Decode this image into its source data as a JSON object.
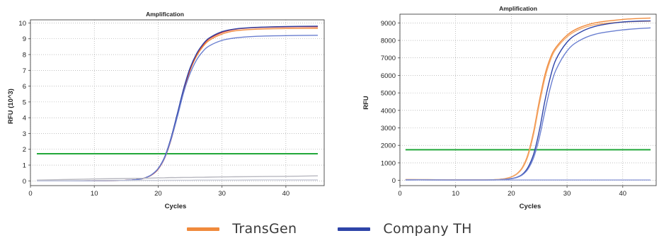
{
  "legend": {
    "items": [
      {
        "label": "TransGen",
        "color": "#f08a3c"
      },
      {
        "label": "Company TH",
        "color": "#2e44a8"
      }
    ]
  },
  "chart_data": [
    {
      "type": "line",
      "title": "Amplification",
      "xlabel": "Cycles",
      "ylabel": "RFU (10^3)",
      "xlim": [
        0,
        46
      ],
      "ylim": [
        -0.3,
        10.2
      ],
      "xticks": [
        0,
        10,
        20,
        30,
        40
      ],
      "yticks": [
        0,
        1,
        2,
        3,
        4,
        5,
        6,
        7,
        8,
        9,
        10
      ],
      "grid": true,
      "threshold": {
        "value": 1.72,
        "color": "#22a83a"
      },
      "x": [
        1,
        5,
        10,
        15,
        17,
        18,
        19,
        20,
        21,
        22,
        23,
        24,
        25,
        26,
        27,
        28,
        30,
        32,
        35,
        40,
        45
      ],
      "series": [
        {
          "color": "#f08a3c",
          "values": [
            0.0,
            0.0,
            0.01,
            0.03,
            0.1,
            0.2,
            0.38,
            0.75,
            1.45,
            2.6,
            4.1,
            5.7,
            7.0,
            7.9,
            8.5,
            8.9,
            9.3,
            9.5,
            9.6,
            9.65,
            9.66
          ]
        },
        {
          "color": "#d43a2a",
          "values": [
            0.0,
            0.0,
            0.01,
            0.03,
            0.1,
            0.2,
            0.38,
            0.74,
            1.43,
            2.58,
            4.1,
            5.75,
            7.05,
            8.0,
            8.6,
            9.0,
            9.4,
            9.6,
            9.7,
            9.75,
            9.76
          ]
        },
        {
          "color": "#2e44a8",
          "values": [
            0.0,
            0.0,
            0.01,
            0.03,
            0.1,
            0.2,
            0.4,
            0.78,
            1.5,
            2.7,
            4.25,
            5.85,
            7.15,
            8.05,
            8.65,
            9.05,
            9.45,
            9.62,
            9.72,
            9.78,
            9.8
          ]
        },
        {
          "color": "#6a7fd0",
          "values": [
            0.0,
            0.0,
            0.01,
            0.03,
            0.1,
            0.2,
            0.4,
            0.77,
            1.45,
            2.6,
            4.05,
            5.6,
            6.8,
            7.65,
            8.2,
            8.55,
            8.9,
            9.05,
            9.15,
            9.2,
            9.22
          ]
        },
        {
          "color": "#b8b8c0",
          "values": [
            0.05,
            0.08,
            0.12,
            0.15,
            0.16,
            0.17,
            0.18,
            0.19,
            0.2,
            0.21,
            0.21,
            0.22,
            0.22,
            0.23,
            0.23,
            0.24,
            0.25,
            0.26,
            0.27,
            0.29,
            0.32
          ]
        },
        {
          "color": "#c9ccd8",
          "values": [
            0.01,
            0.01,
            0.02,
            0.02,
            0.03,
            0.03,
            0.03,
            0.03,
            0.04,
            0.04,
            0.04,
            0.04,
            0.04,
            0.05,
            0.05,
            0.05,
            0.05,
            0.05,
            0.06,
            0.06,
            0.06
          ]
        }
      ]
    },
    {
      "type": "line",
      "title": "Amplification",
      "xlabel": "Cycles",
      "ylabel": "RFU",
      "xlim": [
        0,
        46
      ],
      "ylim": [
        -300,
        9500
      ],
      "xticks": [
        0,
        10,
        20,
        30,
        40
      ],
      "yticks": [
        0,
        1000,
        2000,
        3000,
        4000,
        5000,
        6000,
        7000,
        8000,
        9000
      ],
      "grid": true,
      "threshold": {
        "value": 1750,
        "color": "#22a83a"
      },
      "x": [
        1,
        5,
        10,
        15,
        17,
        18,
        19,
        20,
        21,
        22,
        23,
        24,
        25,
        26,
        27,
        28,
        30,
        32,
        35,
        40,
        45
      ],
      "series": [
        {
          "color": "#f08a3c",
          "values": [
            50,
            40,
            30,
            30,
            40,
            60,
            110,
            200,
            380,
            750,
            1500,
            2800,
            4500,
            6000,
            7000,
            7600,
            8300,
            8700,
            9000,
            9200,
            9280
          ]
        },
        {
          "color": "#f4a869",
          "values": [
            50,
            40,
            30,
            30,
            40,
            60,
            105,
            190,
            360,
            700,
            1400,
            2650,
            4300,
            5800,
            6850,
            7500,
            8200,
            8600,
            8900,
            9050,
            9100
          ]
        },
        {
          "color": "#2e44a8",
          "values": [
            30,
            30,
            20,
            20,
            30,
            40,
            60,
            100,
            180,
            350,
            750,
            1500,
            2800,
            4500,
            5900,
            6900,
            7900,
            8400,
            8800,
            9050,
            9120
          ]
        },
        {
          "color": "#6a7fd0",
          "values": [
            30,
            30,
            20,
            20,
            30,
            40,
            60,
            100,
            170,
            320,
            650,
            1300,
            2400,
            3900,
            5300,
            6300,
            7400,
            7950,
            8350,
            8600,
            8720
          ]
        },
        {
          "color": "#8d9ad6",
          "values": [
            20,
            20,
            20,
            20,
            20,
            20,
            20,
            20,
            20,
            20,
            20,
            20,
            20,
            20,
            20,
            20,
            20,
            20,
            20,
            20,
            20
          ]
        }
      ]
    }
  ]
}
